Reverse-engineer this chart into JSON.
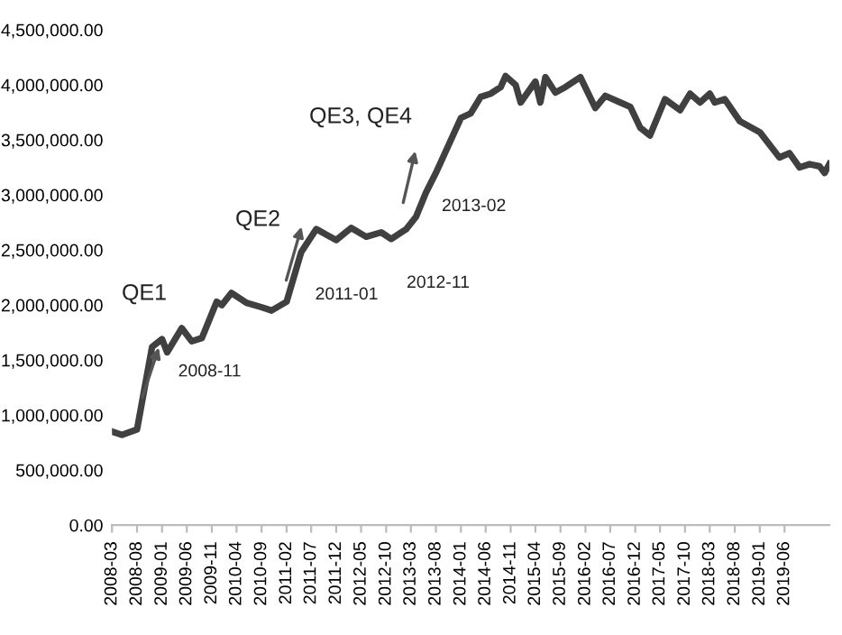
{
  "chart_data": {
    "type": "line",
    "x": [
      "2008-03",
      "2008-05",
      "2008-08",
      "2008-11",
      "2009-01",
      "2009-02",
      "2009-05",
      "2009-07",
      "2009-09",
      "2009-12",
      "2010-01",
      "2010-03",
      "2010-06",
      "2010-09",
      "2010-11",
      "2011-02",
      "2011-05",
      "2011-08",
      "2011-10",
      "2011-12",
      "2012-03",
      "2012-06",
      "2012-09",
      "2012-11",
      "2013-02",
      "2013-04",
      "2013-06",
      "2013-08",
      "2014-01",
      "2014-03",
      "2014-05",
      "2014-07",
      "2014-09",
      "2014-10",
      "2014-12",
      "2015-01",
      "2015-04",
      "2015-05",
      "2015-06",
      "2015-08",
      "2015-10",
      "2016-01",
      "2016-04",
      "2016-06",
      "2016-09",
      "2016-11",
      "2017-01",
      "2017-03",
      "2017-06",
      "2017-09",
      "2017-11",
      "2018-01",
      "2018-03",
      "2018-04",
      "2018-06",
      "2018-09",
      "2019-01",
      "2019-05",
      "2019-07",
      "2019-09",
      "2019-11",
      "2020-01",
      "2020-02",
      "2020-03"
    ],
    "series": [
      {
        "color": "#404040",
        "values": [
          850000,
          820000,
          870000,
          1620000,
          1690000,
          1570000,
          1790000,
          1670000,
          1700000,
          2030000,
          2000000,
          2110000,
          2020000,
          1980000,
          1950000,
          2030000,
          2480000,
          2690000,
          2640000,
          2590000,
          2700000,
          2620000,
          2660000,
          2600000,
          2690000,
          2800000,
          3020000,
          3200000,
          3700000,
          3740000,
          3890000,
          3920000,
          3980000,
          4080000,
          4000000,
          3840000,
          4030000,
          3840000,
          4070000,
          3930000,
          3980000,
          4070000,
          3790000,
          3900000,
          3840000,
          3800000,
          3610000,
          3540000,
          3870000,
          3770000,
          3920000,
          3840000,
          3920000,
          3840000,
          3870000,
          3670000,
          3570000,
          3340000,
          3380000,
          3250000,
          3280000,
          3260000,
          3200000,
          3280000
        ]
      }
    ],
    "xlim": [
      "2008-03",
      "2020-03"
    ],
    "xticks": [
      {
        "value": "2008-03",
        "label": "2008-03"
      },
      {
        "value": "2008-08",
        "label": "2008-08"
      },
      {
        "value": "2009-01",
        "label": "2009-01"
      },
      {
        "value": "2009-06",
        "label": "2009-06"
      },
      {
        "value": "2009-11",
        "label": "2009-11"
      },
      {
        "value": "2010-04",
        "label": "2010-04"
      },
      {
        "value": "2010-09",
        "label": "2010-09"
      },
      {
        "value": "2011-02",
        "label": "2011-02"
      },
      {
        "value": "2011-07",
        "label": "2011-07"
      },
      {
        "value": "2011-12",
        "label": "2011-12"
      },
      {
        "value": "2012-05",
        "label": "2012-05"
      },
      {
        "value": "2012-10",
        "label": "2012-10"
      },
      {
        "value": "2013-03",
        "label": "2013-03"
      },
      {
        "value": "2013-08",
        "label": "2013-08"
      },
      {
        "value": "2014-01",
        "label": "2014-01"
      },
      {
        "value": "2014-06",
        "label": "2014-06"
      },
      {
        "value": "2014-11",
        "label": "2014-11"
      },
      {
        "value": "2015-04",
        "label": "2015-04"
      },
      {
        "value": "2015-09",
        "label": "2015-09"
      },
      {
        "value": "2016-02",
        "label": "2016-02"
      },
      {
        "value": "2016-07",
        "label": "2016-07"
      },
      {
        "value": "2016-12",
        "label": "2016-12"
      },
      {
        "value": "2017-05",
        "label": "2017-05"
      },
      {
        "value": "2017-10",
        "label": "2017-10"
      },
      {
        "value": "2018-03",
        "label": "2018-03"
      },
      {
        "value": "2018-08",
        "label": "2018-08"
      },
      {
        "value": "2019-01",
        "label": "2019-01"
      },
      {
        "value": "2019-06",
        "label": "2019-06"
      }
    ],
    "ylim": [
      0,
      4500000
    ],
    "yticks": [
      {
        "value": 0,
        "label": "0.00"
      },
      {
        "value": 500000,
        "label": "500,000.00"
      },
      {
        "value": 1000000,
        "label": "1,000,000.00"
      },
      {
        "value": 1500000,
        "label": "1,500,000.00"
      },
      {
        "value": 2000000,
        "label": "2,000,000.00"
      },
      {
        "value": 2500000,
        "label": "2,500,000.00"
      },
      {
        "value": 3000000,
        "label": "3,000,000.00"
      },
      {
        "value": 3500000,
        "label": "3,500,000.00"
      },
      {
        "value": 4000000,
        "label": "4,000,000.00"
      },
      {
        "value": 4500000,
        "label": "4,500,000.00"
      }
    ],
    "annotations": [
      "QE1",
      {
        "text": "2008-11",
        "x": "2008-11",
        "y": 1620000
      },
      "QE2",
      {
        "text": "2011-01",
        "x": "2011-01",
        "y": 2000000
      },
      "QE3, QE4",
      "2012-11",
      {
        "text": "2013-02",
        "x": "2013-02",
        "y": 2690000
      }
    ],
    "grid": false,
    "marker": "none",
    "line_style": "solid"
  }
}
